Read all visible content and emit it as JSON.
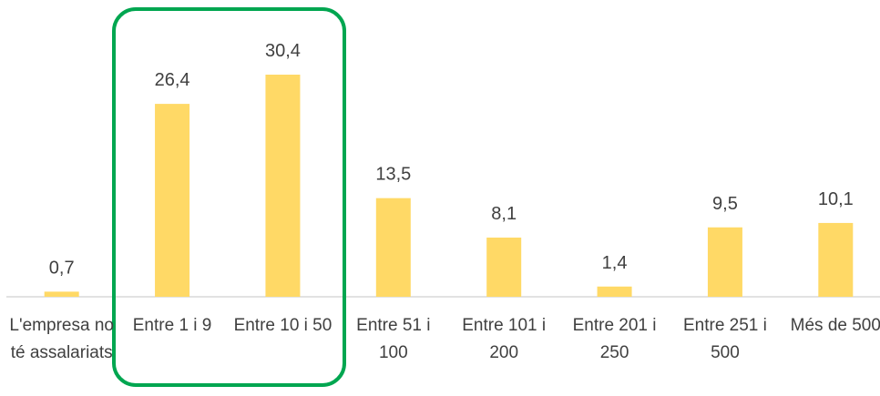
{
  "chart_data": {
    "type": "bar",
    "categories": [
      "L'empresa no té assalariats",
      "Entre 1 i 9",
      "Entre 10 i 50",
      "Entre 51 i 100",
      "Entre 101 i 200",
      "Entre 201 i 250",
      "Entre 251 i 500",
      "Més de 500"
    ],
    "values": [
      0.7,
      26.4,
      30.4,
      13.5,
      8.1,
      1.4,
      9.5,
      10.1
    ],
    "value_labels": [
      "0,7",
      "26,4",
      "30,4",
      "13,5",
      "8,1",
      "1,4",
      "9,5",
      "10,1"
    ],
    "color": "#ffd966"
  }
}
